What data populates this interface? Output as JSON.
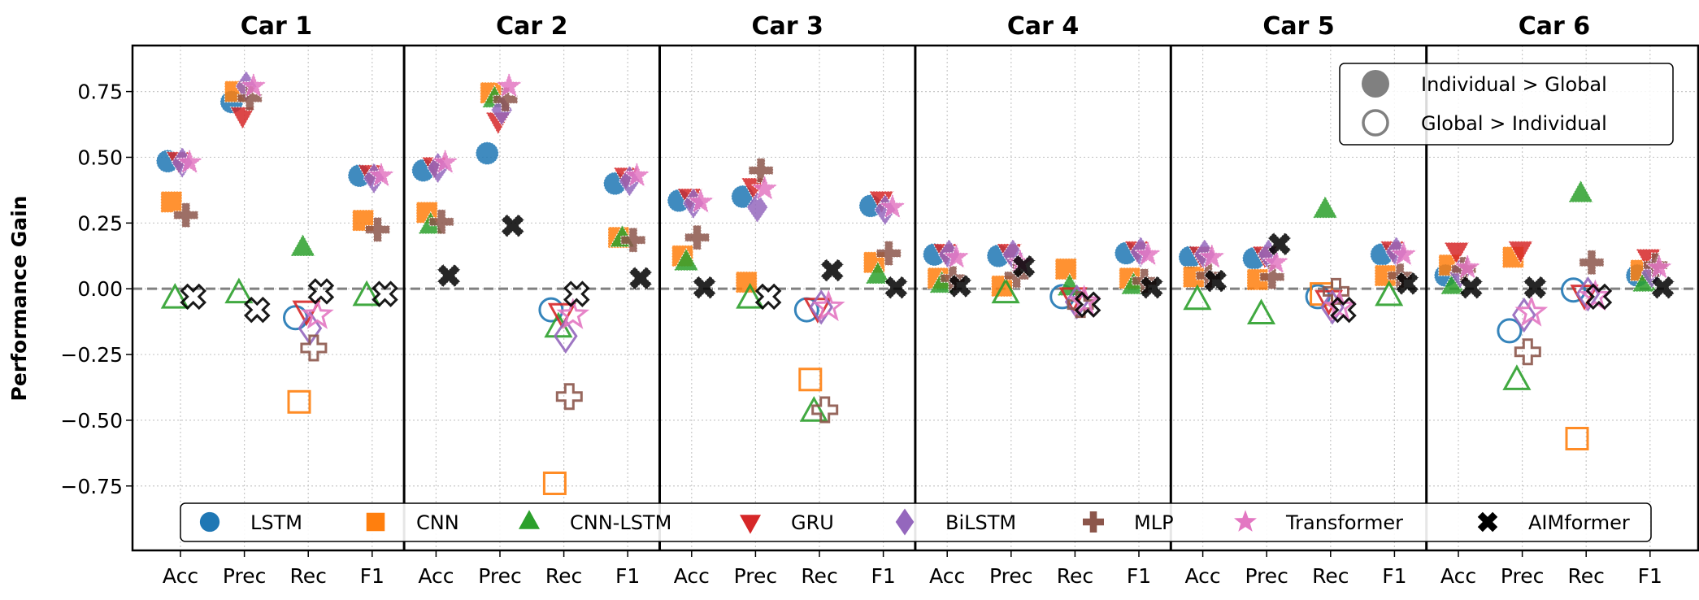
{
  "chart_data": {
    "type": "scatter",
    "panels": [
      "Car 1",
      "Car 2",
      "Car 3",
      "Car 4",
      "Car 5",
      "Car 6"
    ],
    "metrics": [
      "Acc",
      "Prec",
      "Rec",
      "F1"
    ],
    "ylabel": "Performance Gain",
    "xlabel": "",
    "ylim": [
      -0.995,
      0.925
    ],
    "yticks": [
      0.75,
      0.5,
      0.25,
      0.0,
      -0.25,
      -0.5,
      -0.75
    ],
    "ytick_labels": [
      "0.75",
      "0.50",
      "0.25",
      "0.00",
      "−0.25",
      "−0.50",
      "−0.75"
    ],
    "grid": true,
    "reference_line": 0.0,
    "fill_rule_legend": {
      "position": "top-right",
      "entries": [
        {
          "label": "Individual > Global",
          "style": "filled"
        },
        {
          "label": "Global > Individual",
          "style": "hollow"
        }
      ]
    },
    "legend": {
      "position": "bottom"
    },
    "series": [
      {
        "name": "LSTM",
        "marker": "circle",
        "color": "#1f77b4",
        "values": [
          0.485,
          0.71,
          -0.11,
          0.43,
          0.45,
          0.515,
          -0.08,
          0.4,
          0.335,
          0.35,
          -0.08,
          0.315,
          0.13,
          0.125,
          -0.03,
          0.135,
          0.12,
          0.115,
          -0.03,
          0.13,
          0.05,
          -0.16,
          -0.005,
          0.05
        ]
      },
      {
        "name": "CNN",
        "marker": "square",
        "color": "#ff7f0e",
        "values": [
          0.33,
          0.75,
          -0.43,
          0.26,
          0.29,
          0.745,
          -0.74,
          0.195,
          0.125,
          0.025,
          -0.345,
          0.1,
          0.04,
          0.01,
          0.075,
          0.04,
          0.045,
          0.035,
          -0.02,
          0.05,
          0.09,
          0.12,
          -0.57,
          0.07
        ]
      },
      {
        "name": "CNN-LSTM",
        "marker": "triangle-up",
        "color": "#2ca02c",
        "values": [
          -0.04,
          -0.02,
          0.155,
          -0.03,
          0.24,
          0.72,
          -0.15,
          0.19,
          0.1,
          -0.04,
          -0.47,
          0.05,
          0.015,
          -0.02,
          0.005,
          0.01,
          -0.045,
          -0.1,
          0.3,
          -0.03,
          0.01,
          -0.35,
          0.36,
          0.02
        ]
      },
      {
        "name": "GRU",
        "marker": "triangle-down",
        "color": "#d62728",
        "values": [
          0.49,
          0.66,
          -0.08,
          0.44,
          0.47,
          0.64,
          -0.09,
          0.43,
          0.35,
          0.39,
          -0.07,
          0.34,
          0.14,
          0.14,
          -0.03,
          0.15,
          0.13,
          0.13,
          -0.04,
          0.15,
          0.145,
          0.15,
          -0.02,
          0.12
        ]
      },
      {
        "name": "BiLSTM",
        "marker": "diamond",
        "color": "#9467bd",
        "values": [
          0.48,
          0.77,
          -0.15,
          0.42,
          0.46,
          0.68,
          -0.18,
          0.41,
          0.325,
          0.31,
          -0.07,
          0.3,
          0.13,
          0.13,
          -0.05,
          0.14,
          0.13,
          0.13,
          -0.07,
          0.14,
          0.06,
          -0.1,
          -0.02,
          0.06
        ]
      },
      {
        "name": "MLP",
        "marker": "plus",
        "color": "#8c564b",
        "values": [
          0.28,
          0.725,
          -0.225,
          0.225,
          0.255,
          0.72,
          -0.41,
          0.185,
          0.195,
          0.45,
          -0.46,
          0.135,
          0.04,
          0.05,
          -0.06,
          0.03,
          0.05,
          0.045,
          -0.01,
          0.05,
          0.075,
          -0.24,
          0.1,
          0.09
        ]
      },
      {
        "name": "Transformer",
        "marker": "star",
        "color": "#e377c2",
        "values": [
          0.48,
          0.77,
          -0.1,
          0.43,
          0.48,
          0.77,
          -0.1,
          0.43,
          0.33,
          0.38,
          -0.07,
          0.31,
          0.12,
          0.1,
          -0.05,
          0.13,
          0.12,
          0.1,
          -0.07,
          0.13,
          0.08,
          -0.09,
          -0.03,
          0.08
        ]
      },
      {
        "name": "AIMformer",
        "marker": "x",
        "color": "#000000",
        "values": [
          -0.03,
          -0.08,
          -0.01,
          -0.02,
          0.05,
          0.24,
          -0.02,
          0.04,
          0.005,
          -0.03,
          0.07,
          0.005,
          0.01,
          0.085,
          -0.06,
          0.005,
          0.03,
          0.17,
          -0.08,
          0.02,
          0.005,
          0.005,
          -0.03,
          0.005
        ]
      }
    ]
  }
}
